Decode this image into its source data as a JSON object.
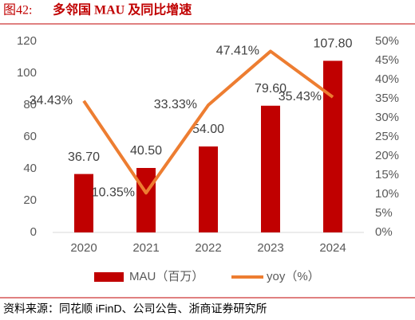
{
  "chart_data": {
    "type": "bar_line",
    "title": "图42:",
    "subtitle": "多邻国 MAU 及同比增速",
    "source": "资料来源：同花顺 iFinD、公司公告、浙商证券研究所",
    "categories": [
      "2020",
      "2021",
      "2022",
      "2023",
      "2024"
    ],
    "series": [
      {
        "name": "MAU（百万）",
        "type": "bar",
        "color": "#c00000",
        "values": [
          36.7,
          40.5,
          54.0,
          79.6,
          107.8
        ],
        "value_labels": [
          "36.70",
          "40.50",
          "54.00",
          "79.60",
          "107.80"
        ]
      },
      {
        "name": "yoy（%）",
        "type": "line",
        "axis": "y2",
        "color": "#ed7d31",
        "values": [
          34.43,
          10.35,
          33.33,
          47.41,
          35.43
        ],
        "value_labels": [
          "34.43%",
          "10.35%",
          "33.33%",
          "47.41%",
          "35.43%"
        ]
      }
    ],
    "ylim": [
      0,
      120
    ],
    "yticks": [
      0,
      20,
      40,
      60,
      80,
      100,
      120
    ],
    "y2lim": [
      0,
      50
    ],
    "y2ticks": [
      {
        "value": 0,
        "label": "0%"
      },
      {
        "value": 5,
        "label": "5%"
      },
      {
        "value": 10,
        "label": "10%"
      },
      {
        "value": 15,
        "label": "15%"
      },
      {
        "value": 20,
        "label": "20%"
      },
      {
        "value": 25,
        "label": "25%"
      },
      {
        "value": 30,
        "label": "30%"
      },
      {
        "value": 35,
        "label": "35%"
      },
      {
        "value": 40,
        "label": "40%"
      },
      {
        "value": 45,
        "label": "45%"
      },
      {
        "value": 50,
        "label": "50%"
      }
    ],
    "legend": "bottom"
  }
}
